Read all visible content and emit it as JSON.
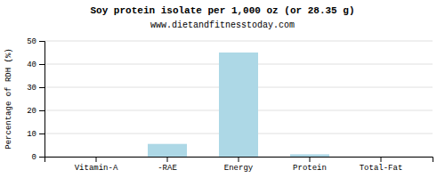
{
  "chart_data": {
    "type": "bar",
    "title": "Soy protein isolate per 1,000 oz (or 28.35 g)",
    "subtitle": "www.dietandfitnesstoday.com",
    "ylabel": "Percentage of RDH (%)",
    "categories": [
      "Vitamin-A",
      "-RAE",
      "Energy",
      "Protein",
      "Total-Fat"
    ],
    "values": [
      0,
      5.5,
      45,
      1.0,
      0
    ],
    "color": "#add8e6",
    "ylim": [
      0,
      50
    ],
    "yticks": [
      0,
      10,
      20,
      30,
      40,
      50
    ],
    "grid": true
  }
}
